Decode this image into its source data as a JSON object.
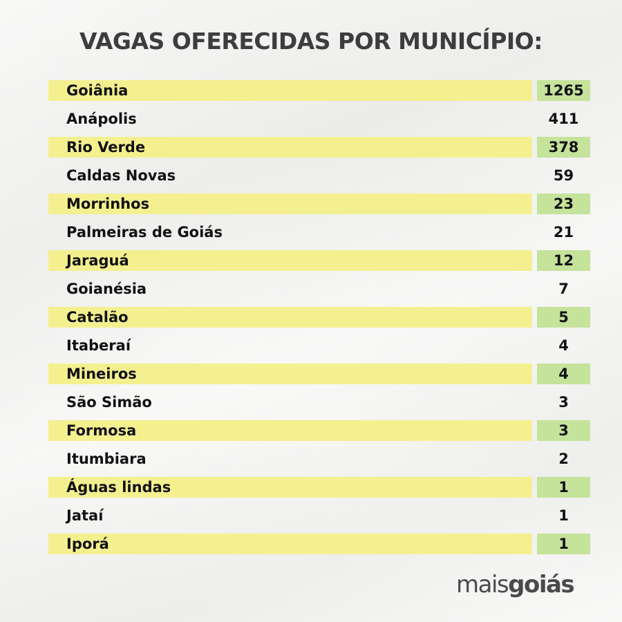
{
  "title": "VAGAS OFERECIDAS POR MUNICÍPIO:",
  "chart_data": {
    "type": "table",
    "title": "VAGAS OFERECIDAS POR MUNICÍPIO:",
    "rows": [
      {
        "municipio": "Goiânia",
        "vagas": 1265
      },
      {
        "municipio": "Anápolis",
        "vagas": 411
      },
      {
        "municipio": "Rio Verde",
        "vagas": 378
      },
      {
        "municipio": "Caldas Novas",
        "vagas": 59
      },
      {
        "municipio": "Morrinhos",
        "vagas": 23
      },
      {
        "municipio": "Palmeiras de Goiás",
        "vagas": 21
      },
      {
        "municipio": "Jaraguá",
        "vagas": 12
      },
      {
        "municipio": "Goianésia",
        "vagas": 7
      },
      {
        "municipio": "Catalão",
        "vagas": 5
      },
      {
        "municipio": "Itaberaí",
        "vagas": 4
      },
      {
        "municipio": "Mineiros",
        "vagas": 4
      },
      {
        "municipio": "São Simão",
        "vagas": 3
      },
      {
        "municipio": "Formosa",
        "vagas": 3
      },
      {
        "municipio": "Itumbiara",
        "vagas": 2
      },
      {
        "municipio": "Águas lindas",
        "vagas": 1
      },
      {
        "municipio": "Jataí",
        "vagas": 1
      },
      {
        "municipio": "Iporá",
        "vagas": 1
      }
    ]
  },
  "colors": {
    "highlight_name": "#f4f08f",
    "highlight_value": "#c5e39b",
    "title": "#3d3d3f"
  },
  "logo": {
    "part1": "mais",
    "part2": "goiás"
  }
}
